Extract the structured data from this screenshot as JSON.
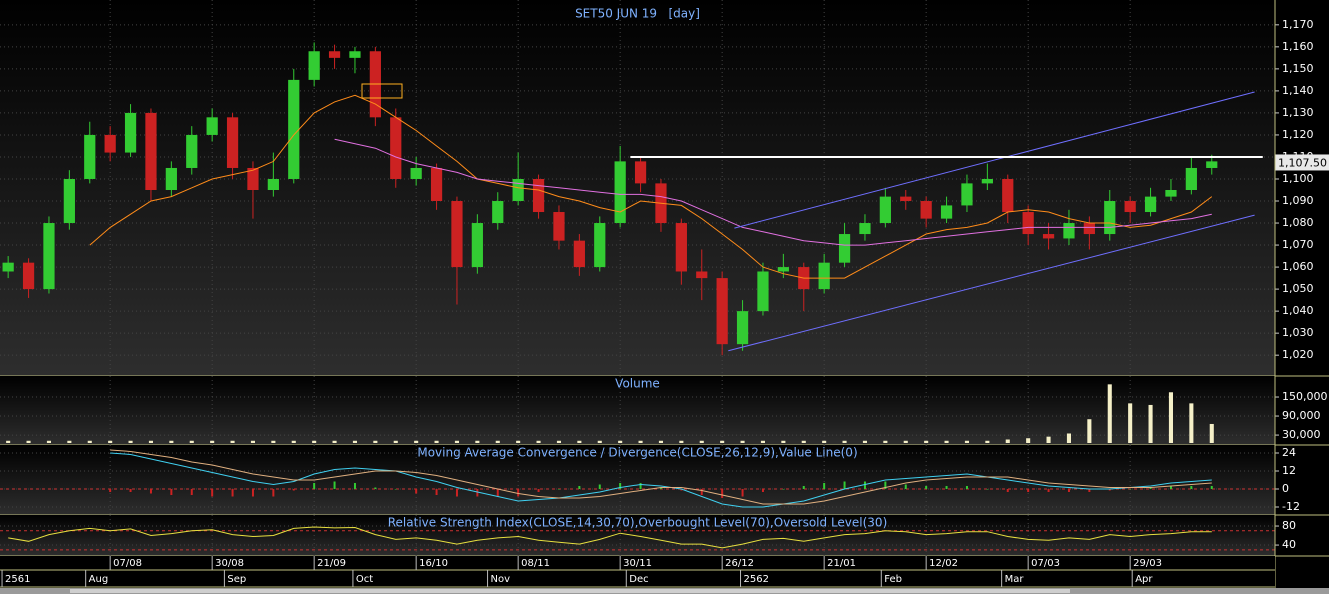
{
  "date_axis": {
    "xlim": [
      -0.4,
      62.1
    ],
    "xticks": [
      {
        "value": 5,
        "label": "07/08"
      },
      {
        "value": 10,
        "label": "30/08"
      },
      {
        "value": 15,
        "label": "21/09"
      },
      {
        "value": 20,
        "label": "16/10"
      },
      {
        "value": 25,
        "label": "08/11"
      },
      {
        "value": 30,
        "label": "30/11"
      },
      {
        "value": 35,
        "label": "26/12"
      },
      {
        "value": 40,
        "label": "21/01"
      },
      {
        "value": 45,
        "label": "12/02"
      },
      {
        "value": 50,
        "label": "07/03"
      },
      {
        "value": 55,
        "label": "29/03"
      }
    ],
    "period_ticks": [
      {
        "value": -0.3,
        "label": "2561"
      },
      {
        "value": 3.8,
        "label": "Aug"
      },
      {
        "value": 10.6,
        "label": "Sep"
      },
      {
        "value": 16.9,
        "label": "Oct"
      },
      {
        "value": 23.5,
        "label": "Nov"
      },
      {
        "value": 30.3,
        "label": "Dec"
      },
      {
        "value": 35.9,
        "label": "2562"
      },
      {
        "value": 42.8,
        "label": "Feb"
      },
      {
        "value": 48.7,
        "label": "Mar"
      },
      {
        "value": 55.1,
        "label": "Apr"
      }
    ]
  },
  "chart_data": [
    {
      "type": "candlestick",
      "title": "SET50 JUN 19   [day]",
      "ylim": [
        1011,
        1179
      ],
      "yticks": [
        {
          "value": 1020,
          "label": "1,020"
        },
        {
          "value": 1030,
          "label": "1,030"
        },
        {
          "value": 1040,
          "label": "1,040"
        },
        {
          "value": 1050,
          "label": "1,050"
        },
        {
          "value": 1060,
          "label": "1,060"
        },
        {
          "value": 1070,
          "label": "1,070"
        },
        {
          "value": 1080,
          "label": "1,080"
        },
        {
          "value": 1090,
          "label": "1,090"
        },
        {
          "value": 1100,
          "label": "1,100"
        },
        {
          "value": 1110,
          "label": "1,110"
        },
        {
          "value": 1120,
          "label": "1,120"
        },
        {
          "value": 1130,
          "label": "1,130"
        },
        {
          "value": 1140,
          "label": "1,140"
        },
        {
          "value": 1150,
          "label": "1,150"
        },
        {
          "value": 1160,
          "label": "1,160"
        },
        {
          "value": 1170,
          "label": "1,170"
        }
      ],
      "grid": true,
      "up_color": "#33cc33",
      "down_color": "#cc2222",
      "open": [
        1058,
        1062,
        1050,
        1080,
        1100,
        1120,
        1112,
        1130,
        1095,
        1105,
        1120,
        1128,
        1105,
        1095,
        1100,
        1145,
        1158,
        1155,
        1158,
        1128,
        1100,
        1105,
        1090,
        1060,
        1080,
        1090,
        1100,
        1085,
        1072,
        1060,
        1080,
        1108,
        1098,
        1080,
        1058,
        1055,
        1025,
        1040,
        1058,
        1060,
        1050,
        1062,
        1075,
        1080,
        1092,
        1090,
        1082,
        1088,
        1098,
        1100,
        1085,
        1075,
        1073,
        1080,
        1075,
        1090,
        1085,
        1092,
        1095,
        1105
      ],
      "high": [
        1065,
        1064,
        1083,
        1104,
        1126,
        1124,
        1134,
        1132,
        1108,
        1124,
        1132,
        1130,
        1108,
        1112,
        1150,
        1162,
        1161,
        1160,
        1160,
        1132,
        1110,
        1107,
        1092,
        1084,
        1094,
        1112,
        1102,
        1088,
        1075,
        1083,
        1115,
        1110,
        1100,
        1082,
        1068,
        1058,
        1045,
        1062,
        1066,
        1062,
        1066,
        1080,
        1084,
        1096,
        1095,
        1092,
        1092,
        1102,
        1107,
        1102,
        1088,
        1080,
        1086,
        1083,
        1095,
        1092,
        1096,
        1100,
        1110,
        1111
      ],
      "low": [
        1055,
        1046,
        1048,
        1077,
        1098,
        1108,
        1110,
        1090,
        1092,
        1102,
        1117,
        1100,
        1082,
        1092,
        1098,
        1142,
        1150,
        1148,
        1124,
        1096,
        1097,
        1086,
        1043,
        1057,
        1077,
        1088,
        1082,
        1068,
        1056,
        1058,
        1078,
        1094,
        1076,
        1052,
        1045,
        1020,
        1022,
        1038,
        1055,
        1040,
        1048,
        1060,
        1072,
        1078,
        1086,
        1078,
        1080,
        1085,
        1095,
        1080,
        1070,
        1068,
        1070,
        1068,
        1072,
        1080,
        1083,
        1090,
        1093,
        1102
      ],
      "close": [
        1062,
        1050,
        1080,
        1100,
        1120,
        1112,
        1130,
        1095,
        1105,
        1120,
        1128,
        1105,
        1095,
        1100,
        1145,
        1158,
        1155,
        1158,
        1128,
        1100,
        1105,
        1090,
        1060,
        1080,
        1090,
        1100,
        1085,
        1072,
        1060,
        1080,
        1108,
        1098,
        1080,
        1058,
        1055,
        1025,
        1040,
        1058,
        1060,
        1050,
        1062,
        1075,
        1080,
        1092,
        1090,
        1082,
        1088,
        1098,
        1100,
        1085,
        1075,
        1073,
        1080,
        1075,
        1090,
        1085,
        1092,
        1095,
        1105,
        1108
      ],
      "overlays": [
        {
          "color": "#ff8c1a",
          "values": [
            null,
            null,
            null,
            null,
            1070,
            1078,
            1084,
            1090,
            1092,
            1096,
            1100,
            1102,
            1104,
            1108,
            1120,
            1130,
            1135,
            1138,
            1134,
            1128,
            1122,
            1115,
            1108,
            1100,
            1098,
            1096,
            1095,
            1092,
            1090,
            1087,
            1085,
            1090,
            1089,
            1088,
            1082,
            1075,
            1068,
            1060,
            1057,
            1055,
            1055,
            1055,
            1060,
            1065,
            1070,
            1075,
            1077,
            1078,
            1080,
            1085,
            1086,
            1085,
            1082,
            1080,
            1080,
            1078,
            1079,
            1082,
            1085,
            1092
          ]
        },
        {
          "color": "#e070e0",
          "values": [
            null,
            null,
            null,
            null,
            null,
            null,
            null,
            null,
            null,
            null,
            null,
            null,
            null,
            null,
            null,
            null,
            1118,
            1116,
            1114,
            1110,
            1107,
            1105,
            1103,
            1100,
            1099,
            1098,
            1097,
            1096,
            1095,
            1094,
            1093,
            1093,
            1092,
            1090,
            1086,
            1082,
            1078,
            1076,
            1074,
            1072,
            1071,
            1070,
            1070,
            1071,
            1072,
            1073,
            1074,
            1075,
            1076,
            1077,
            1078,
            1078,
            1078,
            1078,
            1078,
            1079,
            1080,
            1081,
            1082,
            1084
          ]
        }
      ],
      "lines": [
        {
          "color": "#6f6fff",
          "x": [
            35.6,
            61.1
          ],
          "y": [
            1077.7,
            1139.5
          ]
        },
        {
          "color": "#6f6fff",
          "x": [
            35.3,
            61.1
          ],
          "y": [
            1022,
            1083.6
          ]
        },
        {
          "color": "#ffffff",
          "x": [
            30.5,
            61.5
          ],
          "y": [
            1110,
            1110
          ]
        }
      ],
      "last_price": {
        "value": 1107.5,
        "label": "1,107.50"
      }
    },
    {
      "type": "bar",
      "title": "Volume",
      "ylim": [
        5000,
        210000
      ],
      "yticks": [
        {
          "value": 30000,
          "label": "30,000"
        },
        {
          "value": 90000,
          "label": "90,000"
        },
        {
          "value": 150000,
          "label": "150,000"
        }
      ],
      "grid": true,
      "color": "#f5f0c8",
      "values": [
        12000,
        12000,
        12000,
        12000,
        12000,
        12000,
        12000,
        12000,
        12000,
        12000,
        12000,
        12000,
        12000,
        12000,
        12000,
        12000,
        12000,
        12000,
        12000,
        12000,
        12000,
        12000,
        12000,
        12000,
        12000,
        12000,
        12000,
        12000,
        12000,
        12000,
        12000,
        12000,
        12000,
        12000,
        12000,
        12000,
        12000,
        12000,
        12000,
        12000,
        12000,
        12000,
        12000,
        12000,
        12000,
        12000,
        12000,
        12000,
        12000,
        16000,
        20000,
        25000,
        35000,
        80000,
        190000,
        130000,
        125000,
        165000,
        130000,
        65000
      ]
    },
    {
      "type": "line",
      "title": "Moving Average Convergence / Divergence(CLOSE,26,12,9),Value Line(0)",
      "ylim": [
        -16,
        28
      ],
      "yticks": [
        -12,
        0,
        12,
        24
      ],
      "grid": true,
      "levels": [
        {
          "value": 0,
          "color": "#cc3333"
        }
      ],
      "histogram": {
        "up_color": "#33cc33",
        "down_color": "#cc2222",
        "values": [
          null,
          null,
          null,
          null,
          null,
          -2,
          -2,
          -3,
          -4,
          -4,
          -5,
          -5,
          -5,
          -5,
          -1,
          4,
          5,
          4,
          1,
          0,
          -3,
          -4,
          -5,
          -5,
          -5,
          -5,
          -2,
          0,
          2,
          3,
          4,
          4,
          1,
          -1,
          -4,
          -6,
          -5,
          -2,
          0,
          2,
          4,
          5,
          5,
          5,
          3,
          2,
          2,
          2,
          0,
          -2,
          -2,
          -2,
          -2,
          -2,
          -1,
          0,
          1,
          2,
          2,
          2
        ]
      },
      "series": [
        {
          "color": "#40d0f0",
          "values": [
            null,
            null,
            null,
            null,
            null,
            24,
            23,
            20,
            17,
            14,
            11,
            8,
            5,
            3,
            5,
            10,
            13,
            14,
            13,
            12,
            8,
            5,
            1,
            -2,
            -5,
            -8,
            -7,
            -6,
            -4,
            -2,
            1,
            3,
            2,
            0,
            -5,
            -10,
            -12,
            -12,
            -10,
            -8,
            -4,
            0,
            3,
            6,
            7,
            8,
            9,
            10,
            8,
            6,
            4,
            2,
            1,
            0,
            0,
            1,
            2,
            4,
            5,
            6
          ]
        },
        {
          "color": "#e0b080",
          "values": [
            null,
            null,
            null,
            null,
            null,
            26,
            25,
            23,
            21,
            18,
            16,
            13,
            10,
            8,
            6,
            6,
            8,
            10,
            12,
            12,
            11,
            9,
            6,
            3,
            0,
            -3,
            -5,
            -6,
            -6,
            -5,
            -3,
            -1,
            1,
            1,
            -1,
            -4,
            -7,
            -10,
            -10,
            -10,
            -8,
            -5,
            -2,
            1,
            4,
            6,
            7,
            8,
            8,
            8,
            6,
            4,
            3,
            2,
            1,
            1,
            1,
            2,
            3,
            4
          ]
        }
      ]
    },
    {
      "type": "line",
      "title": "Relative Strength Index(CLOSE,14,30,70),Overbought Level(70),Oversold Level(30)",
      "ylim": [
        17,
        99
      ],
      "yticks": [
        40,
        80
      ],
      "grid": true,
      "levels": [
        {
          "value": 70,
          "color": "#cc3333"
        },
        {
          "value": 30,
          "color": "#cc3333"
        }
      ],
      "series": [
        {
          "color": "#e8e040",
          "values": [
            55,
            48,
            62,
            70,
            75,
            70,
            74,
            60,
            64,
            70,
            72,
            62,
            58,
            60,
            75,
            78,
            76,
            77,
            62,
            52,
            55,
            50,
            42,
            50,
            55,
            58,
            50,
            46,
            42,
            52,
            65,
            58,
            50,
            42,
            42,
            34,
            42,
            52,
            54,
            48,
            55,
            62,
            64,
            70,
            68,
            62,
            64,
            68,
            68,
            58,
            52,
            50,
            55,
            52,
            62,
            58,
            62,
            64,
            68,
            68
          ]
        }
      ]
    }
  ]
}
